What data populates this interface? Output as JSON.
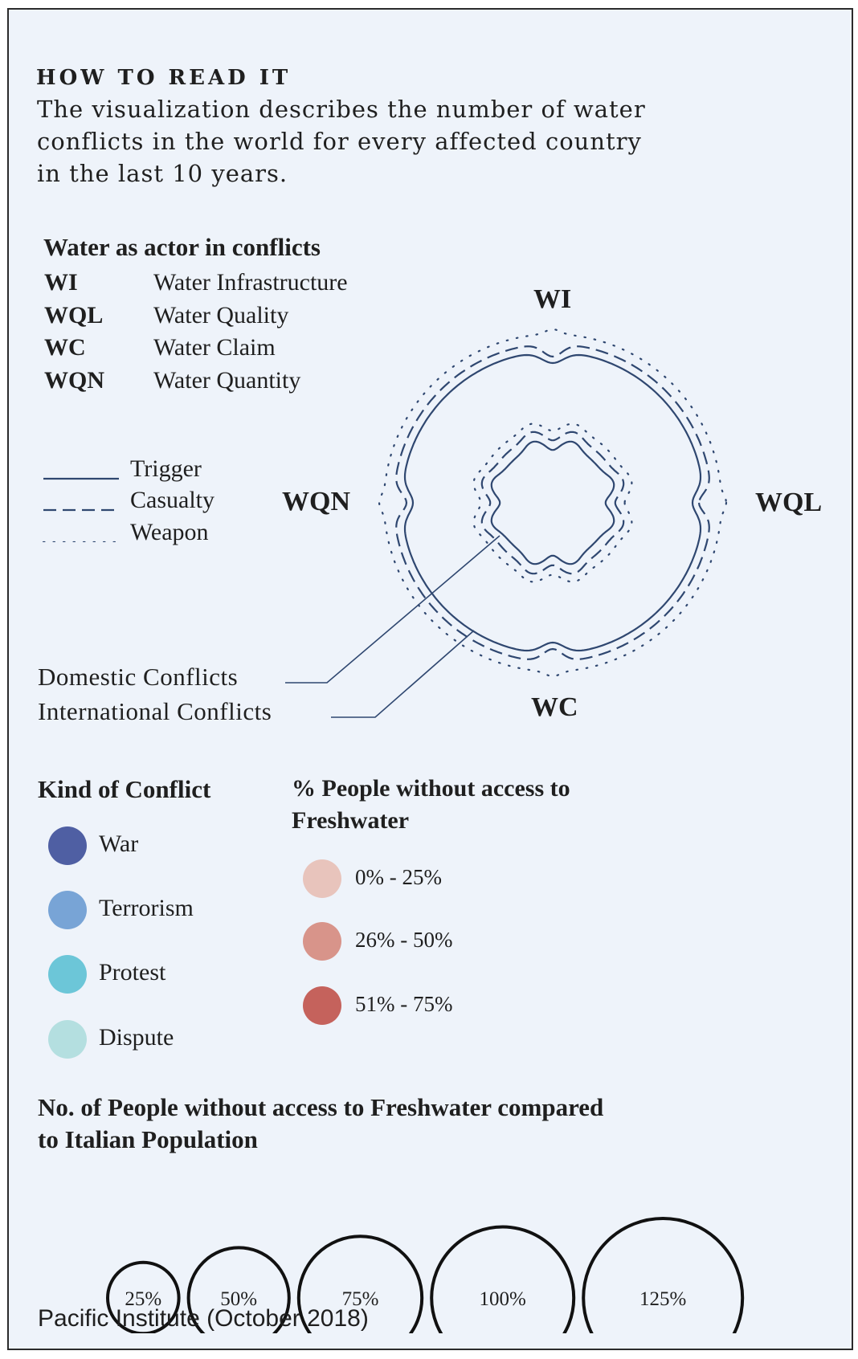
{
  "how_to_read": {
    "title": "HOW TO READ IT",
    "description": "The visualization describes the number of water conflicts in the world for every affected country in the last 10 years."
  },
  "water_actor": {
    "title": "Water as actor in conflicts",
    "items": [
      {
        "code": "WI",
        "label": "Water Infrastructure"
      },
      {
        "code": "WQL",
        "label": "Water Quality"
      },
      {
        "code": "WC",
        "label": "Water Claim"
      },
      {
        "code": "WQN",
        "label": "Water Quantity"
      }
    ]
  },
  "line_types": {
    "items": [
      {
        "label": "Trigger",
        "style": "solid"
      },
      {
        "label": "Casualty",
        "style": "dashed"
      },
      {
        "label": "Weapon",
        "style": "dotted"
      }
    ]
  },
  "diagram": {
    "axes": {
      "top": "WI",
      "right": "WQL",
      "bottom": "WC",
      "left": "WQN"
    },
    "stroke_color": "#2f4770",
    "callouts": {
      "domestic": "Domestic Conflicts",
      "international": "International Conflicts"
    }
  },
  "kind_of_conflict": {
    "title": "Kind of Conflict",
    "items": [
      {
        "label": "War",
        "color": "#4f5fa3"
      },
      {
        "label": "Terrorism",
        "color": "#78a4d6"
      },
      {
        "label": "Protest",
        "color": "#6cc6d8"
      },
      {
        "label": "Dispute",
        "color": "#b4dfe0"
      }
    ]
  },
  "freshwater_pct": {
    "title_line1": "% People without access to",
    "title_line2": "Freshwater",
    "items": [
      {
        "label": "0% - 25%",
        "color": "#e8c4bc"
      },
      {
        "label": "26% - 50%",
        "color": "#d8948a"
      },
      {
        "label": "51% - 75%",
        "color": "#c5625c"
      }
    ]
  },
  "population_compare": {
    "title_line1": "No. of People without access to Freshwater compared",
    "title_line2": "to Italian Population",
    "circles": [
      {
        "label": "25%",
        "value": 25
      },
      {
        "label": "50%",
        "value": 50
      },
      {
        "label": "75%",
        "value": 75
      },
      {
        "label": "100%",
        "value": 100
      },
      {
        "label": "125%",
        "value": 125
      }
    ]
  },
  "source": "Pacific Institute (October 2018)"
}
